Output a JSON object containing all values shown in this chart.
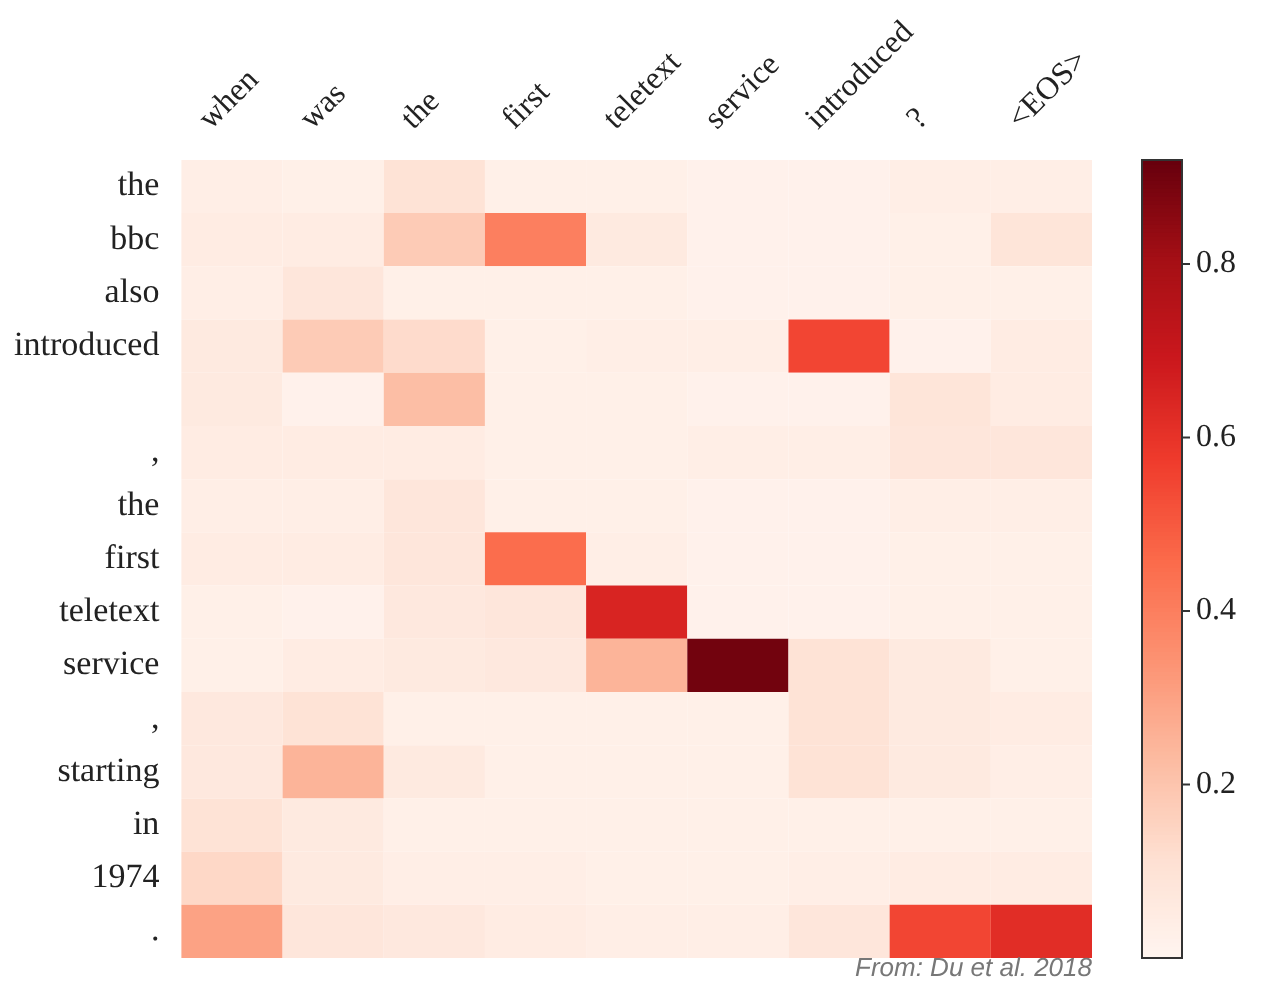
{
  "chart_data": {
    "type": "heatmap",
    "categories": [
      "when",
      "was",
      "the",
      "first",
      "teletext",
      "service",
      "introduced",
      "?",
      "<EOS>"
    ],
    "y_categories": [
      "the",
      "bbc",
      "also",
      "introduced",
      null,
      ",",
      "the",
      "first",
      "teletext",
      "service",
      ",",
      "starting",
      "in",
      "1974",
      "."
    ],
    "cells": [
      [
        0.04,
        0.03,
        0.1,
        0.03,
        0.03,
        0.02,
        0.02,
        0.04,
        0.04
      ],
      [
        0.05,
        0.05,
        0.18,
        0.4,
        0.06,
        0.02,
        0.02,
        0.03,
        0.09
      ],
      [
        0.04,
        0.08,
        0.03,
        0.03,
        0.03,
        0.02,
        0.02,
        0.03,
        0.03
      ],
      [
        0.06,
        0.18,
        0.13,
        0.03,
        0.04,
        0.04,
        0.55,
        0.02,
        0.05
      ],
      [
        0.06,
        0.02,
        0.22,
        0.03,
        0.03,
        0.02,
        0.02,
        0.09,
        0.05
      ],
      [
        0.05,
        0.05,
        0.05,
        0.03,
        0.03,
        0.04,
        0.04,
        0.08,
        0.08
      ],
      [
        0.04,
        0.04,
        0.08,
        0.03,
        0.03,
        0.02,
        0.02,
        0.04,
        0.04
      ],
      [
        0.05,
        0.05,
        0.08,
        0.45,
        0.04,
        0.02,
        0.02,
        0.03,
        0.03
      ],
      [
        0.03,
        0.02,
        0.07,
        0.08,
        0.65,
        0.02,
        0.02,
        0.03,
        0.03
      ],
      [
        0.03,
        0.05,
        0.06,
        0.07,
        0.25,
        0.9,
        0.1,
        0.06,
        0.03
      ],
      [
        0.07,
        0.1,
        0.03,
        0.03,
        0.03,
        0.03,
        0.1,
        0.06,
        0.05
      ],
      [
        0.07,
        0.25,
        0.06,
        0.03,
        0.03,
        0.03,
        0.1,
        0.06,
        0.04
      ],
      [
        0.1,
        0.06,
        0.03,
        0.03,
        0.03,
        0.03,
        0.03,
        0.03,
        0.03
      ],
      [
        0.14,
        0.06,
        0.04,
        0.04,
        0.03,
        0.03,
        0.04,
        0.05,
        0.05
      ],
      [
        0.3,
        0.08,
        0.07,
        0.05,
        0.04,
        0.04,
        0.08,
        0.55,
        0.62
      ]
    ],
    "clim": [
      0,
      0.92
    ],
    "cticks": [
      0.2,
      0.4,
      0.6,
      0.8
    ],
    "annotations": [
      "From: Du et al. 2018"
    ]
  }
}
